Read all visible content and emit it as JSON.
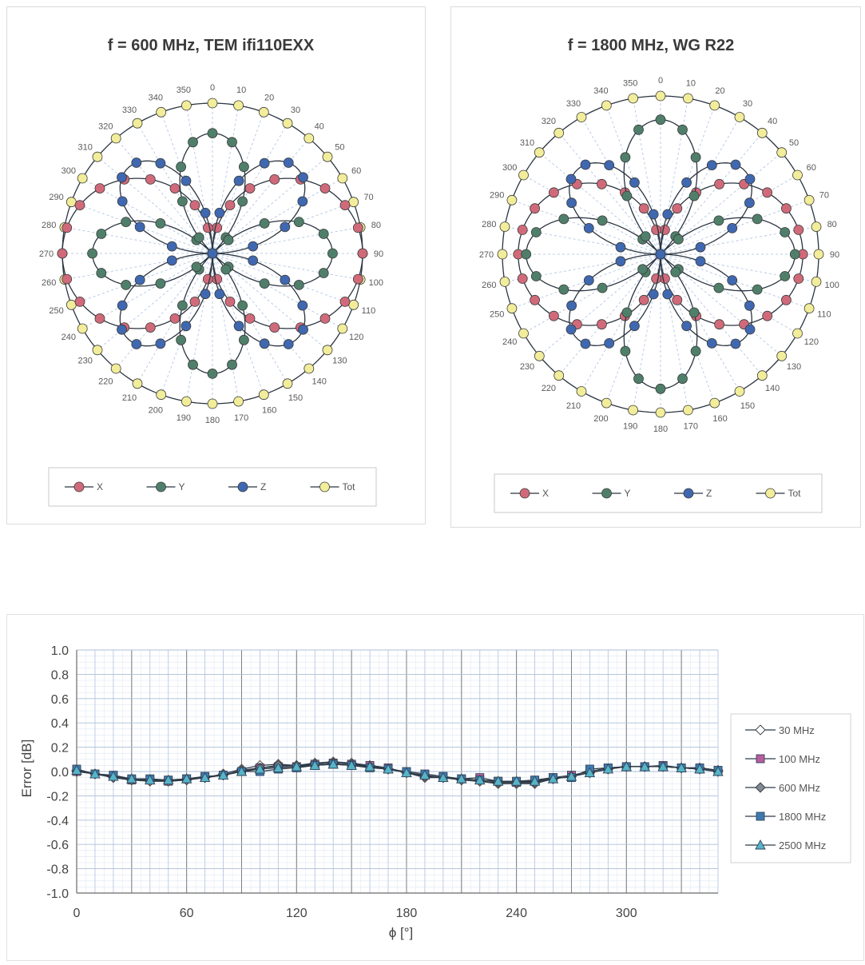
{
  "chart_data": [
    {
      "type": "polar",
      "title": "f = 600 MHz, TEM  ifi110EXX",
      "angle_labels": [
        0,
        10,
        20,
        30,
        40,
        50,
        60,
        70,
        80,
        90,
        100,
        110,
        120,
        130,
        140,
        150,
        160,
        170,
        180,
        190,
        200,
        210,
        220,
        230,
        240,
        250,
        260,
        270,
        280,
        290,
        300,
        310,
        320,
        330,
        340,
        350
      ],
      "series": [
        {
          "name": "X",
          "color": "#d06a7a",
          "pattern": "figure8-horizontal",
          "rotation_deg": 0,
          "peak": 1.0
        },
        {
          "name": "Y",
          "color": "#4f7f6a",
          "pattern": "four-petal",
          "rotation_deg": 45,
          "peak": 0.8
        },
        {
          "name": "Z",
          "color": "#3f68b0",
          "pattern": "four-petal",
          "rotation_deg": 0,
          "peak": 0.8
        },
        {
          "name": "Tot",
          "color": "#f1ed9a",
          "pattern": "circle",
          "rotation_deg": 0,
          "peak": 1.0
        }
      ],
      "legend": {
        "placement": "bottom",
        "entries": [
          "X",
          "Y",
          "Z",
          "Tot"
        ]
      }
    },
    {
      "type": "polar",
      "title": "f = 1800 MHz, WG R22",
      "angle_labels": [
        0,
        10,
        20,
        30,
        40,
        50,
        60,
        70,
        80,
        90,
        100,
        110,
        120,
        130,
        140,
        150,
        160,
        170,
        180,
        190,
        200,
        210,
        220,
        230,
        240,
        250,
        260,
        270,
        280,
        290,
        300,
        310,
        320,
        330,
        340,
        350
      ],
      "series": [
        {
          "name": "X",
          "color": "#d06a7a",
          "pattern": "figure8-horizontal",
          "rotation_deg": 0,
          "peak": 0.9
        },
        {
          "name": "Y",
          "color": "#4f7f6a",
          "pattern": "four-petal",
          "rotation_deg": 45,
          "peak": 0.85
        },
        {
          "name": "Z",
          "color": "#3f68b0",
          "pattern": "four-petal",
          "rotation_deg": 0,
          "peak": 0.75
        },
        {
          "name": "Tot",
          "color": "#f1ed9a",
          "pattern": "circle",
          "rotation_deg": 0,
          "peak": 1.0
        }
      ],
      "legend": {
        "placement": "bottom",
        "entries": [
          "X",
          "Y",
          "Z",
          "Tot"
        ]
      }
    },
    {
      "type": "line",
      "title": "",
      "xlabel": "ϕ [°]",
      "ylabel": "Error [dB]",
      "xlim": [
        0,
        350
      ],
      "ylim": [
        -1.0,
        1.0
      ],
      "x_ticks": [
        "0",
        "60",
        "120",
        "180",
        "240",
        "300"
      ],
      "y_ticks": [
        "1.0",
        "0.8",
        "0.6",
        "0.4",
        "0.2",
        "0.0",
        "-0.2",
        "-0.4",
        "-0.6",
        "-0.8",
        "-1.0"
      ],
      "grid": true,
      "legend": {
        "placement": "right"
      },
      "x": [
        0,
        10,
        20,
        30,
        40,
        50,
        60,
        70,
        80,
        90,
        100,
        110,
        120,
        130,
        140,
        150,
        160,
        170,
        180,
        190,
        200,
        210,
        220,
        230,
        240,
        250,
        260,
        270,
        280,
        290,
        300,
        310,
        320,
        330,
        340,
        350
      ],
      "series": [
        {
          "name": "30 MHz",
          "color": "#ffffff",
          "marker": "diamond",
          "values": [
            0.0,
            -0.02,
            -0.05,
            -0.07,
            -0.07,
            -0.08,
            -0.07,
            -0.05,
            -0.02,
            0.02,
            0.05,
            0.06,
            0.05,
            0.07,
            0.08,
            0.07,
            0.05,
            0.02,
            -0.01,
            -0.05,
            -0.05,
            -0.07,
            -0.08,
            -0.1,
            -0.1,
            -0.1,
            -0.06,
            -0.04,
            -0.01,
            0.02,
            0.04,
            0.04,
            0.04,
            0.03,
            0.03,
            0.01
          ]
        },
        {
          "name": "100 MHz",
          "color": "#b85c9e",
          "marker": "square",
          "values": [
            0.0,
            -0.02,
            -0.04,
            -0.07,
            -0.07,
            -0.08,
            -0.06,
            -0.05,
            -0.03,
            0.0,
            0.03,
            0.04,
            0.04,
            0.06,
            0.07,
            0.06,
            0.05,
            0.03,
            -0.01,
            -0.03,
            -0.05,
            -0.06,
            -0.05,
            -0.08,
            -0.09,
            -0.08,
            -0.05,
            -0.03,
            0.0,
            0.03,
            0.04,
            0.04,
            0.05,
            0.03,
            0.02,
            0.0
          ]
        },
        {
          "name": "600 MHz",
          "color": "#7f8a96",
          "marker": "diamond",
          "values": [
            0.01,
            -0.02,
            -0.05,
            -0.07,
            -0.08,
            -0.08,
            -0.07,
            -0.05,
            -0.03,
            0.01,
            0.03,
            0.05,
            0.05,
            0.06,
            0.07,
            0.06,
            0.04,
            0.02,
            -0.01,
            -0.04,
            -0.05,
            -0.07,
            -0.08,
            -0.09,
            -0.09,
            -0.09,
            -0.06,
            -0.04,
            -0.01,
            0.02,
            0.04,
            0.04,
            0.04,
            0.03,
            0.02,
            0.0
          ]
        },
        {
          "name": "1800 MHz",
          "color": "#3e7ab0",
          "marker": "square",
          "values": [
            0.02,
            -0.02,
            -0.03,
            -0.06,
            -0.06,
            -0.07,
            -0.06,
            -0.04,
            -0.03,
            0.0,
            0.0,
            0.02,
            0.03,
            0.05,
            0.06,
            0.05,
            0.03,
            0.02,
            0.0,
            -0.02,
            -0.04,
            -0.06,
            -0.07,
            -0.08,
            -0.08,
            -0.07,
            -0.05,
            -0.05,
            0.02,
            0.03,
            0.04,
            0.04,
            0.04,
            0.03,
            0.03,
            0.01
          ]
        },
        {
          "name": "2500 MHz",
          "color": "#56b4c8",
          "marker": "triangle",
          "values": [
            0.01,
            -0.02,
            -0.04,
            -0.06,
            -0.07,
            -0.07,
            -0.06,
            -0.05,
            -0.03,
            0.0,
            0.02,
            0.03,
            0.04,
            0.05,
            0.06,
            0.05,
            0.04,
            0.02,
            -0.01,
            -0.03,
            -0.05,
            -0.06,
            -0.07,
            -0.08,
            -0.08,
            -0.08,
            -0.06,
            -0.04,
            -0.01,
            0.02,
            0.04,
            0.04,
            0.04,
            0.03,
            0.02,
            0.0
          ]
        }
      ]
    }
  ]
}
